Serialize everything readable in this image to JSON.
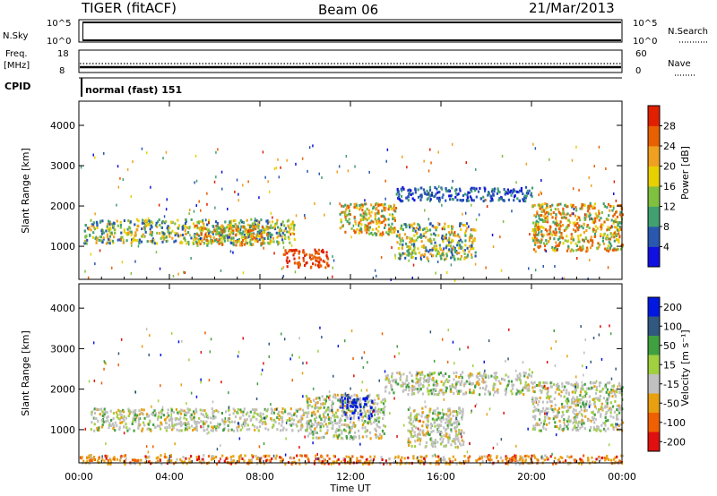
{
  "header": {
    "title": "TIGER (fitACF)",
    "beam": "Beam 06",
    "date": "21/Mar/2013"
  },
  "panels": {
    "nsky": {
      "left_label": "N.Sky",
      "left_ticks": [
        "10^5",
        "10^0"
      ],
      "right_ticks": [
        "10^5",
        "10^0"
      ],
      "right_label": "N.Search"
    },
    "freq": {
      "left_label_1": "Freq.",
      "left_label_2": "[MHz]",
      "left_ticks": [
        "18",
        "8"
      ],
      "right_ticks": [
        "60",
        "0"
      ],
      "right_label": "Nave"
    },
    "cpid": {
      "left_label": "CPID",
      "text": "normal (fast) 151"
    }
  },
  "x_axis": {
    "label": "Time UT",
    "ticks": [
      "00:00",
      "04:00",
      "08:00",
      "12:00",
      "16:00",
      "20:00",
      "00:00"
    ]
  },
  "chart_data": [
    {
      "type": "heatmap",
      "panel": "power",
      "ylabel": "Slant Range [km]",
      "y_ticks": [
        "1000",
        "2000",
        "3000",
        "4000"
      ],
      "ylim": [
        180,
        4600
      ],
      "xlim_hours": [
        0,
        24
      ],
      "colorbar": {
        "label": "Power [dB]",
        "ticks": [
          "4",
          "8",
          "12",
          "16",
          "20",
          "24",
          "28"
        ],
        "colors": [
          "#1010e0",
          "#2858b0",
          "#40a070",
          "#80c040",
          "#e8d000",
          "#f0a020",
          "#e86000",
          "#e02000"
        ]
      },
      "regions": [
        {
          "t_start": 0.2,
          "t_end": 9.5,
          "r_low": 1100,
          "r_high": 1700,
          "level": "mid"
        },
        {
          "t_start": 5.0,
          "t_end": 8.5,
          "r_low": 1050,
          "r_high": 1550,
          "level": "high"
        },
        {
          "t_start": 9.0,
          "t_end": 11.0,
          "r_low": 500,
          "r_high": 950,
          "level": "strong"
        },
        {
          "t_start": 11.5,
          "t_end": 14.0,
          "r_low": 1300,
          "r_high": 2100,
          "level": "high"
        },
        {
          "t_start": 14.0,
          "t_end": 17.5,
          "r_low": 700,
          "r_high": 1600,
          "level": "mid"
        },
        {
          "t_start": 14.0,
          "t_end": 20.0,
          "r_low": 2150,
          "r_high": 2500,
          "level": "low"
        },
        {
          "t_start": 20.0,
          "t_end": 24.0,
          "r_low": 900,
          "r_high": 2100,
          "level": "high"
        }
      ]
    },
    {
      "type": "heatmap",
      "panel": "velocity",
      "ylabel": "Slant Range [km]",
      "y_ticks": [
        "1000",
        "2000",
        "3000",
        "4000"
      ],
      "ylim": [
        180,
        4600
      ],
      "xlim_hours": [
        0,
        24
      ],
      "colorbar": {
        "label": "Velocity [m s⁻¹]",
        "ticks": [
          "200",
          "100",
          "50",
          "15",
          "-15",
          "-50",
          "-100",
          "-200"
        ],
        "colors": [
          "#0018e0",
          "#305880",
          "#40a040",
          "#a0d040",
          "#c0c0c0",
          "#e8a010",
          "#f06000",
          "#e01010"
        ]
      },
      "regions": [
        {
          "t_start": 0.5,
          "t_end": 10.0,
          "r_low": 1000,
          "r_high": 1550,
          "level": "ground"
        },
        {
          "t_start": 10.0,
          "t_end": 13.5,
          "r_low": 800,
          "r_high": 1900,
          "level": "ground"
        },
        {
          "t_start": 11.5,
          "t_end": 13.0,
          "r_low": 1300,
          "r_high": 1900,
          "level": "positive"
        },
        {
          "t_start": 13.5,
          "t_end": 20.0,
          "r_low": 1900,
          "r_high": 2450,
          "level": "ground"
        },
        {
          "t_start": 14.5,
          "t_end": 17.0,
          "r_low": 600,
          "r_high": 1600,
          "level": "ground"
        },
        {
          "t_start": 20.0,
          "t_end": 24.0,
          "r_low": 1000,
          "r_high": 2200,
          "level": "ground"
        },
        {
          "t_start": 0.0,
          "t_end": 24.0,
          "r_low": 180,
          "r_high": 400,
          "level": "negative"
        }
      ]
    }
  ]
}
